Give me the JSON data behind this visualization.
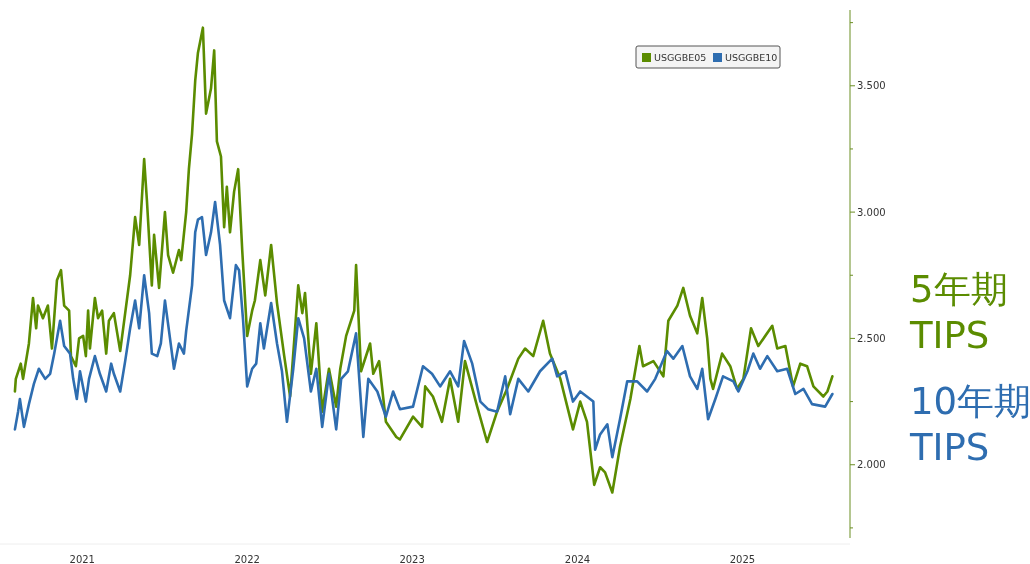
{
  "chart_data": {
    "type": "line",
    "legend": "top right",
    "xlim": [
      "2021-01-01",
      "2026-02-25"
    ],
    "ylim": [
      1.71,
      3.8
    ],
    "xticks": [
      {
        "value": "2021-07-02",
        "label": "2021"
      },
      {
        "value": "2022-07-02",
        "label": "2022"
      },
      {
        "value": "2023-07-02",
        "label": "2023"
      },
      {
        "value": "2024-07-02",
        "label": "2024"
      },
      {
        "value": "2025-07-02",
        "label": "2025"
      }
    ],
    "yticks": [
      {
        "value": 1.75,
        "label": null
      },
      {
        "value": 2,
        "label": "2.000"
      },
      {
        "value": 2.25,
        "label": null
      },
      {
        "value": 2.5,
        "label": "2.500"
      },
      {
        "value": 2.75,
        "label": null
      },
      {
        "value": 3,
        "label": "3.000"
      },
      {
        "value": 3.25,
        "label": null
      },
      {
        "value": 3.5,
        "label": "3.500"
      },
      {
        "value": 3.75,
        "label": null
      }
    ],
    "annotations": [
      "5年期 TIPS",
      "10年期 TIPS"
    ],
    "series": [
      {
        "name": "USGGBE05",
        "color": "#5b8c00",
        "x": [
          "2021-02-03",
          "2021-02-05",
          "2021-02-16",
          "2021-02-21",
          "2021-03-06",
          "2021-03-15",
          "2021-03-22",
          "2021-03-26",
          "2021-04-06",
          "2021-04-17",
          "2021-04-26",
          "2021-05-07",
          "2021-05-16",
          "2021-05-23",
          "2021-06-03",
          "2021-06-07",
          "2021-06-18",
          "2021-06-25",
          "2021-07-04",
          "2021-07-10",
          "2021-07-15",
          "2021-07-19",
          "2021-07-30",
          "2021-08-06",
          "2021-08-15",
          "2021-08-24",
          "2021-08-30",
          "2021-09-10",
          "2021-09-24",
          "2021-10-05",
          "2021-10-16",
          "2021-10-27",
          "2021-11-05",
          "2021-11-16",
          "2021-11-22",
          "2021-12-03",
          "2021-12-08",
          "2021-12-19",
          "2022-01-01",
          "2022-01-08",
          "2022-01-19",
          "2022-02-01",
          "2022-02-06",
          "2022-02-17",
          "2022-02-23",
          "2022-03-02",
          "2022-03-09",
          "2022-03-15",
          "2022-03-26",
          "2022-04-02",
          "2022-04-13",
          "2022-04-20",
          "2022-04-26",
          "2022-05-05",
          "2022-05-12",
          "2022-05-18",
          "2022-05-25",
          "2022-06-03",
          "2022-06-12",
          "2022-06-21",
          "2022-07-02",
          "2022-07-13",
          "2022-07-19",
          "2022-07-31",
          "2022-08-11",
          "2022-08-24",
          "2022-09-06",
          "2022-09-22",
          "2022-10-05",
          "2022-10-23",
          "2022-11-01",
          "2022-11-07",
          "2022-11-20",
          "2022-12-02",
          "2022-12-15",
          "2022-12-30",
          "2023-01-15",
          "2023-01-24",
          "2023-02-06",
          "2023-02-24",
          "2023-02-28",
          "2023-03-11",
          "2023-03-31",
          "2023-04-07",
          "2023-04-20",
          "2023-05-05",
          "2023-05-28",
          "2023-06-05",
          "2023-07-04",
          "2023-07-24",
          "2023-07-31",
          "2023-08-17",
          "2023-09-06",
          "2023-09-24",
          "2023-10-12",
          "2023-10-27",
          "2023-11-23",
          "2023-12-15",
          "2024-01-06",
          "2024-01-28",
          "2024-02-22",
          "2024-03-08",
          "2024-03-26",
          "2024-04-17",
          "2024-05-02",
          "2024-05-25",
          "2024-06-22",
          "2024-07-08",
          "2024-07-23",
          "2024-08-08",
          "2024-08-21",
          "2024-09-01",
          "2024-09-17",
          "2024-10-04",
          "2024-10-27",
          "2024-11-16",
          "2024-11-24",
          "2024-12-17",
          "2025-01-08",
          "2025-01-19",
          "2025-02-08",
          "2025-02-21",
          "2025-03-08",
          "2025-03-24",
          "2025-04-04",
          "2025-04-15",
          "2025-04-22",
          "2025-04-28",
          "2025-05-18",
          "2025-06-05",
          "2025-06-20",
          "2025-07-04",
          "2025-07-21",
          "2025-08-06",
          "2025-09-06",
          "2025-09-17",
          "2025-10-05",
          "2025-10-22",
          "2025-11-07",
          "2025-11-22",
          "2025-12-06",
          "2025-12-28",
          "2026-01-06",
          "2026-01-17"
        ],
        "values": [
          2.29,
          2.34,
          2.4,
          2.34,
          2.48,
          2.66,
          2.54,
          2.63,
          2.58,
          2.63,
          2.46,
          2.73,
          2.77,
          2.63,
          2.61,
          2.43,
          2.39,
          2.5,
          2.51,
          2.43,
          2.61,
          2.46,
          2.66,
          2.58,
          2.61,
          2.44,
          2.57,
          2.6,
          2.45,
          2.6,
          2.75,
          2.98,
          2.87,
          3.21,
          3.05,
          2.71,
          2.91,
          2.7,
          3.0,
          2.83,
          2.76,
          2.85,
          2.81,
          3.0,
          3.17,
          3.31,
          3.52,
          3.63,
          3.73,
          3.39,
          3.49,
          3.64,
          3.28,
          3.22,
          2.94,
          3.1,
          2.92,
          3.08,
          3.17,
          2.85,
          2.51,
          2.61,
          2.65,
          2.81,
          2.67,
          2.87,
          2.64,
          2.43,
          2.27,
          2.71,
          2.6,
          2.68,
          2.36,
          2.56,
          2.21,
          2.38,
          2.23,
          2.38,
          2.51,
          2.61,
          2.79,
          2.37,
          2.48,
          2.36,
          2.41,
          2.17,
          2.11,
          2.1,
          2.19,
          2.15,
          2.31,
          2.27,
          2.17,
          2.34,
          2.17,
          2.41,
          2.23,
          2.09,
          2.21,
          2.3,
          2.42,
          2.46,
          2.43,
          2.57,
          2.44,
          2.34,
          2.14,
          2.25,
          2.17,
          1.92,
          1.99,
          1.97,
          1.89,
          2.07,
          2.26,
          2.47,
          2.39,
          2.41,
          2.35,
          2.57,
          2.63,
          2.7,
          2.59,
          2.52,
          2.66,
          2.5,
          2.34,
          2.3,
          2.44,
          2.39,
          2.3,
          2.34,
          2.54,
          2.47,
          2.55,
          2.46,
          2.47,
          2.31,
          2.4,
          2.39,
          2.31,
          2.27,
          2.29,
          2.35
        ]
      },
      {
        "name": "USGGBE10",
        "color": "#2e6db0",
        "x": [
          "2021-02-03",
          "2021-02-10",
          "2021-02-14",
          "2021-02-23",
          "2021-03-06",
          "2021-03-17",
          "2021-03-28",
          "2021-04-11",
          "2021-04-22",
          "2021-05-01",
          "2021-05-14",
          "2021-05-23",
          "2021-06-05",
          "2021-06-12",
          "2021-06-20",
          "2021-06-27",
          "2021-07-10",
          "2021-07-17",
          "2021-07-30",
          "2021-08-10",
          "2021-08-24",
          "2021-09-04",
          "2021-09-10",
          "2021-09-24",
          "2021-10-05",
          "2021-10-16",
          "2021-10-27",
          "2021-11-05",
          "2021-11-16",
          "2021-11-27",
          "2021-12-03",
          "2021-12-15",
          "2021-12-23",
          "2022-01-01",
          "2022-01-10",
          "2022-01-21",
          "2022-02-01",
          "2022-02-12",
          "2022-02-17",
          "2022-03-02",
          "2022-03-09",
          "2022-03-15",
          "2022-03-24",
          "2022-04-02",
          "2022-04-13",
          "2022-04-22",
          "2022-05-03",
          "2022-05-12",
          "2022-05-25",
          "2022-06-07",
          "2022-06-14",
          "2022-06-23",
          "2022-07-02",
          "2022-07-13",
          "2022-07-22",
          "2022-07-31",
          "2022-08-08",
          "2022-08-24",
          "2022-09-06",
          "2022-09-17",
          "2022-09-28",
          "2022-10-12",
          "2022-10-23",
          "2022-11-05",
          "2022-11-20",
          "2022-12-02",
          "2022-12-15",
          "2022-12-30",
          "2023-01-15",
          "2023-01-26",
          "2023-02-10",
          "2023-02-28",
          "2023-03-16",
          "2023-03-27",
          "2023-04-16",
          "2023-05-05",
          "2023-05-21",
          "2023-06-05",
          "2023-07-04",
          "2023-07-26",
          "2023-08-15",
          "2023-09-02",
          "2023-09-24",
          "2023-10-12",
          "2023-10-25",
          "2023-11-12",
          "2023-11-30",
          "2023-12-17",
          "2024-01-06",
          "2024-01-24",
          "2024-02-04",
          "2024-02-22",
          "2024-03-15",
          "2024-04-10",
          "2024-05-07",
          "2024-05-18",
          "2024-06-05",
          "2024-06-22",
          "2024-07-08",
          "2024-08-06",
          "2024-08-10",
          "2024-08-21",
          "2024-09-06",
          "2024-09-17",
          "2024-10-04",
          "2024-10-20",
          "2024-11-11",
          "2024-12-03",
          "2024-12-21",
          "2025-01-16",
          "2025-01-30",
          "2025-02-19",
          "2025-03-08",
          "2025-03-24",
          "2025-04-04",
          "2025-04-17",
          "2025-05-03",
          "2025-05-20",
          "2025-06-12",
          "2025-06-23",
          "2025-07-13",
          "2025-07-26",
          "2025-08-10",
          "2025-08-26",
          "2025-09-17",
          "2025-10-09",
          "2025-10-27",
          "2025-11-14",
          "2025-12-03",
          "2026-01-01",
          "2026-01-17"
        ],
        "values": [
          2.14,
          2.21,
          2.26,
          2.15,
          2.24,
          2.32,
          2.38,
          2.34,
          2.36,
          2.44,
          2.57,
          2.47,
          2.44,
          2.34,
          2.26,
          2.37,
          2.25,
          2.34,
          2.43,
          2.36,
          2.29,
          2.4,
          2.36,
          2.29,
          2.41,
          2.54,
          2.65,
          2.54,
          2.75,
          2.6,
          2.44,
          2.43,
          2.48,
          2.65,
          2.53,
          2.38,
          2.48,
          2.44,
          2.53,
          2.71,
          2.92,
          2.97,
          2.98,
          2.83,
          2.92,
          3.04,
          2.87,
          2.65,
          2.58,
          2.79,
          2.77,
          2.57,
          2.31,
          2.38,
          2.4,
          2.56,
          2.46,
          2.64,
          2.48,
          2.37,
          2.17,
          2.38,
          2.58,
          2.5,
          2.29,
          2.38,
          2.15,
          2.36,
          2.14,
          2.34,
          2.37,
          2.52,
          2.11,
          2.34,
          2.29,
          2.19,
          2.29,
          2.22,
          2.23,
          2.39,
          2.36,
          2.31,
          2.37,
          2.31,
          2.49,
          2.4,
          2.25,
          2.22,
          2.21,
          2.35,
          2.2,
          2.34,
          2.29,
          2.37,
          2.42,
          2.35,
          2.37,
          2.25,
          2.29,
          2.25,
          2.06,
          2.12,
          2.16,
          2.03,
          2.18,
          2.33,
          2.33,
          2.29,
          2.34,
          2.45,
          2.42,
          2.47,
          2.35,
          2.3,
          2.38,
          2.18,
          2.26,
          2.35,
          2.33,
          2.29,
          2.37,
          2.44,
          2.38,
          2.43,
          2.37,
          2.38,
          2.28,
          2.3,
          2.24,
          2.23,
          2.28
        ]
      }
    ]
  }
}
